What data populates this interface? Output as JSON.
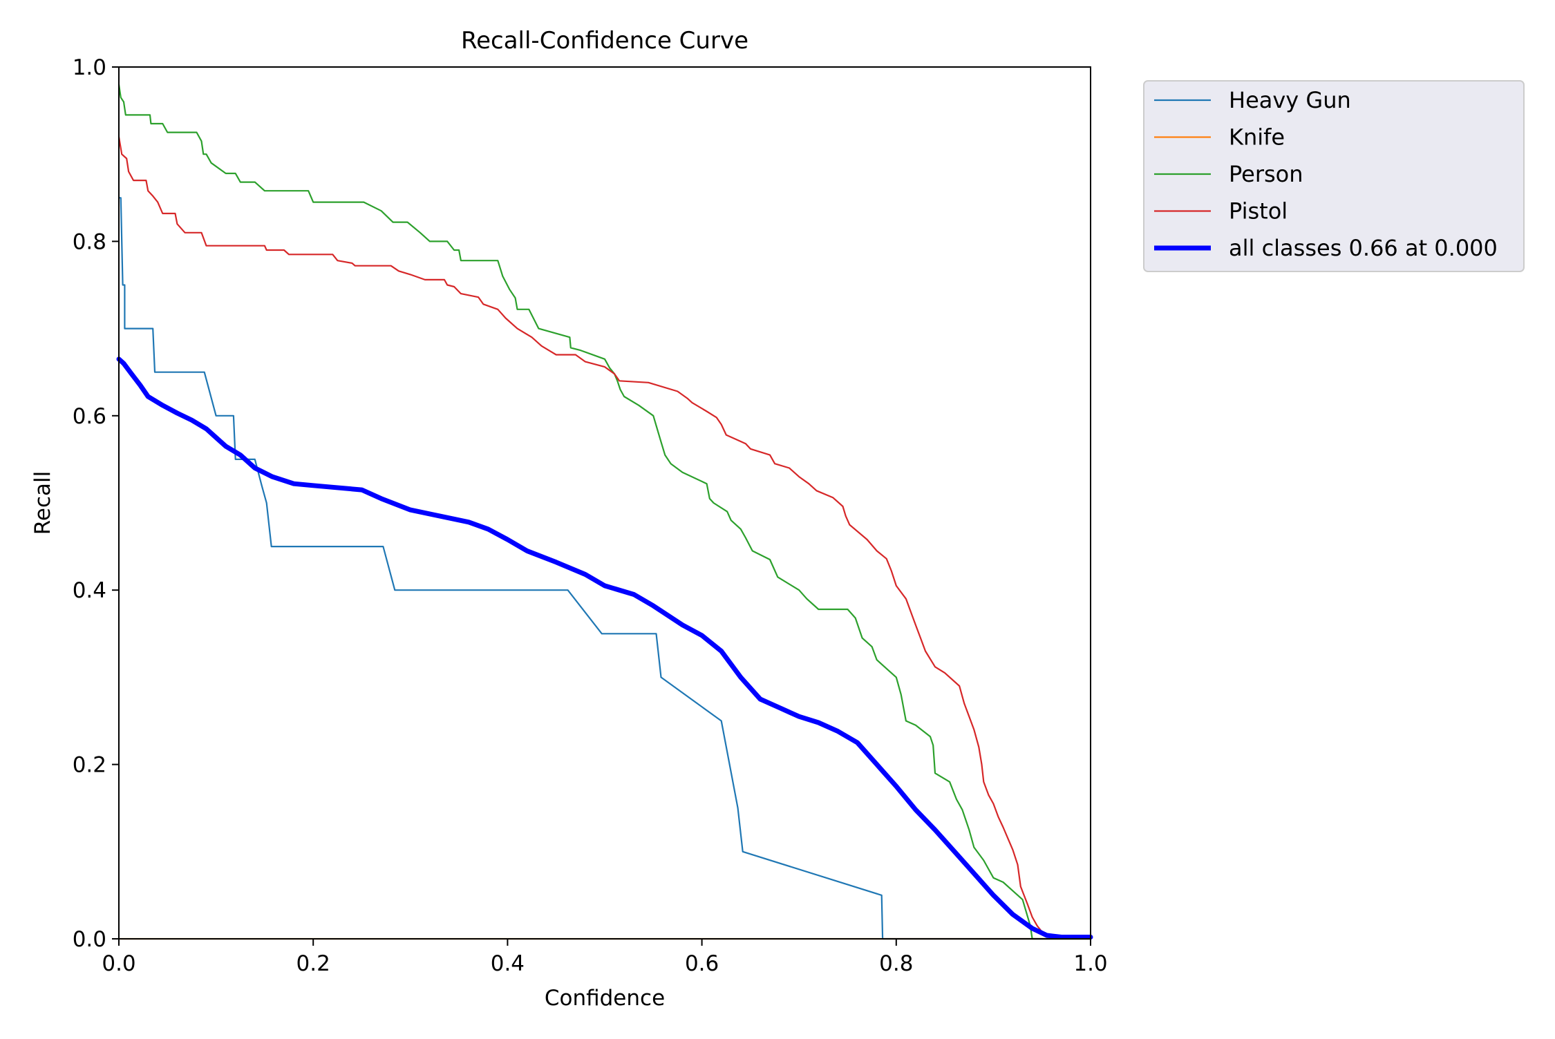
{
  "chart_data": {
    "type": "line",
    "title": "Recall-Confidence Curve",
    "xlabel": "Confidence",
    "ylabel": "Recall",
    "xlim": [
      0.0,
      1.0
    ],
    "ylim": [
      0.0,
      1.0
    ],
    "x_ticks": [
      "0.0",
      "0.2",
      "0.4",
      "0.6",
      "0.8",
      "1.0"
    ],
    "y_ticks": [
      "0.0",
      "0.2",
      "0.4",
      "0.6",
      "0.8",
      "1.0"
    ],
    "grid": false,
    "legend_position": "outside-upper-right",
    "series": [
      {
        "name": "Heavy Gun",
        "color": "#1f77b4",
        "width": "thin",
        "points": [
          [
            0.0,
            0.85
          ],
          [
            0.002,
            0.85
          ],
          [
            0.004,
            0.75
          ],
          [
            0.006,
            0.75
          ],
          [
            0.006,
            0.7
          ],
          [
            0.035,
            0.7
          ],
          [
            0.037,
            0.65
          ],
          [
            0.088,
            0.65
          ],
          [
            0.1,
            0.6
          ],
          [
            0.118,
            0.6
          ],
          [
            0.12,
            0.55
          ],
          [
            0.14,
            0.55
          ],
          [
            0.147,
            0.52
          ],
          [
            0.152,
            0.5
          ],
          [
            0.157,
            0.45
          ],
          [
            0.272,
            0.45
          ],
          [
            0.284,
            0.4
          ],
          [
            0.462,
            0.4
          ],
          [
            0.497,
            0.35
          ],
          [
            0.553,
            0.35
          ],
          [
            0.558,
            0.3
          ],
          [
            0.62,
            0.25
          ],
          [
            0.637,
            0.15
          ],
          [
            0.642,
            0.1
          ],
          [
            0.785,
            0.05
          ],
          [
            0.786,
            0.0
          ],
          [
            1.0,
            0.0
          ]
        ]
      },
      {
        "name": "Knife",
        "color": "#ff7f0e",
        "width": "thin",
        "points": [
          [
            0.0,
            0.0
          ],
          [
            1.0,
            0.0
          ]
        ]
      },
      {
        "name": "Person",
        "color": "#2ca02c",
        "width": "thin",
        "points": [
          [
            0.0,
            0.98
          ],
          [
            0.002,
            0.965
          ],
          [
            0.005,
            0.96
          ],
          [
            0.007,
            0.945
          ],
          [
            0.032,
            0.945
          ],
          [
            0.033,
            0.935
          ],
          [
            0.045,
            0.935
          ],
          [
            0.05,
            0.925
          ],
          [
            0.08,
            0.925
          ],
          [
            0.085,
            0.915
          ],
          [
            0.087,
            0.9
          ],
          [
            0.09,
            0.9
          ],
          [
            0.095,
            0.89
          ],
          [
            0.11,
            0.878
          ],
          [
            0.12,
            0.878
          ],
          [
            0.125,
            0.868
          ],
          [
            0.14,
            0.868
          ],
          [
            0.15,
            0.858
          ],
          [
            0.195,
            0.858
          ],
          [
            0.2,
            0.845
          ],
          [
            0.252,
            0.845
          ],
          [
            0.27,
            0.835
          ],
          [
            0.282,
            0.822
          ],
          [
            0.297,
            0.822
          ],
          [
            0.31,
            0.81
          ],
          [
            0.32,
            0.8
          ],
          [
            0.338,
            0.8
          ],
          [
            0.345,
            0.79
          ],
          [
            0.35,
            0.79
          ],
          [
            0.352,
            0.778
          ],
          [
            0.39,
            0.778
          ],
          [
            0.395,
            0.76
          ],
          [
            0.402,
            0.745
          ],
          [
            0.408,
            0.735
          ],
          [
            0.41,
            0.722
          ],
          [
            0.422,
            0.722
          ],
          [
            0.432,
            0.7
          ],
          [
            0.464,
            0.69
          ],
          [
            0.465,
            0.678
          ],
          [
            0.475,
            0.675
          ],
          [
            0.5,
            0.665
          ],
          [
            0.505,
            0.655
          ],
          [
            0.51,
            0.648
          ],
          [
            0.513,
            0.64
          ],
          [
            0.516,
            0.63
          ],
          [
            0.52,
            0.622
          ],
          [
            0.535,
            0.612
          ],
          [
            0.55,
            0.6
          ],
          [
            0.558,
            0.57
          ],
          [
            0.562,
            0.555
          ],
          [
            0.568,
            0.545
          ],
          [
            0.58,
            0.535
          ],
          [
            0.605,
            0.522
          ],
          [
            0.608,
            0.505
          ],
          [
            0.612,
            0.5
          ],
          [
            0.626,
            0.49
          ],
          [
            0.63,
            0.48
          ],
          [
            0.64,
            0.47
          ],
          [
            0.645,
            0.46
          ],
          [
            0.652,
            0.445
          ],
          [
            0.67,
            0.435
          ],
          [
            0.678,
            0.415
          ],
          [
            0.7,
            0.4
          ],
          [
            0.708,
            0.39
          ],
          [
            0.72,
            0.378
          ],
          [
            0.75,
            0.378
          ],
          [
            0.758,
            0.368
          ],
          [
            0.765,
            0.345
          ],
          [
            0.775,
            0.335
          ],
          [
            0.78,
            0.32
          ],
          [
            0.79,
            0.31
          ],
          [
            0.8,
            0.3
          ],
          [
            0.805,
            0.28
          ],
          [
            0.81,
            0.25
          ],
          [
            0.82,
            0.245
          ],
          [
            0.835,
            0.232
          ],
          [
            0.838,
            0.222
          ],
          [
            0.84,
            0.19
          ],
          [
            0.855,
            0.18
          ],
          [
            0.862,
            0.16
          ],
          [
            0.868,
            0.148
          ],
          [
            0.875,
            0.125
          ],
          [
            0.88,
            0.105
          ],
          [
            0.89,
            0.09
          ],
          [
            0.9,
            0.07
          ],
          [
            0.91,
            0.065
          ],
          [
            0.92,
            0.055
          ],
          [
            0.93,
            0.045
          ],
          [
            0.938,
            0.015
          ],
          [
            0.94,
            0.0
          ],
          [
            1.0,
            0.0
          ]
        ]
      },
      {
        "name": "Pistol",
        "color": "#d62728",
        "width": "thin",
        "points": [
          [
            0.0,
            0.92
          ],
          [
            0.003,
            0.9
          ],
          [
            0.008,
            0.895
          ],
          [
            0.01,
            0.88
          ],
          [
            0.015,
            0.87
          ],
          [
            0.028,
            0.87
          ],
          [
            0.03,
            0.858
          ],
          [
            0.035,
            0.852
          ],
          [
            0.04,
            0.845
          ],
          [
            0.045,
            0.832
          ],
          [
            0.058,
            0.832
          ],
          [
            0.06,
            0.82
          ],
          [
            0.068,
            0.81
          ],
          [
            0.085,
            0.81
          ],
          [
            0.09,
            0.795
          ],
          [
            0.15,
            0.795
          ],
          [
            0.152,
            0.79
          ],
          [
            0.17,
            0.79
          ],
          [
            0.175,
            0.785
          ],
          [
            0.22,
            0.785
          ],
          [
            0.225,
            0.778
          ],
          [
            0.24,
            0.775
          ],
          [
            0.243,
            0.772
          ],
          [
            0.28,
            0.772
          ],
          [
            0.288,
            0.766
          ],
          [
            0.3,
            0.762
          ],
          [
            0.315,
            0.756
          ],
          [
            0.335,
            0.756
          ],
          [
            0.338,
            0.75
          ],
          [
            0.345,
            0.748
          ],
          [
            0.352,
            0.74
          ],
          [
            0.37,
            0.736
          ],
          [
            0.375,
            0.728
          ],
          [
            0.39,
            0.722
          ],
          [
            0.398,
            0.712
          ],
          [
            0.41,
            0.7
          ],
          [
            0.425,
            0.69
          ],
          [
            0.435,
            0.68
          ],
          [
            0.45,
            0.67
          ],
          [
            0.47,
            0.67
          ],
          [
            0.48,
            0.662
          ],
          [
            0.5,
            0.656
          ],
          [
            0.51,
            0.648
          ],
          [
            0.515,
            0.64
          ],
          [
            0.545,
            0.638
          ],
          [
            0.575,
            0.628
          ],
          [
            0.585,
            0.62
          ],
          [
            0.59,
            0.615
          ],
          [
            0.605,
            0.605
          ],
          [
            0.615,
            0.598
          ],
          [
            0.62,
            0.59
          ],
          [
            0.625,
            0.578
          ],
          [
            0.645,
            0.568
          ],
          [
            0.65,
            0.562
          ],
          [
            0.67,
            0.555
          ],
          [
            0.675,
            0.545
          ],
          [
            0.69,
            0.54
          ],
          [
            0.7,
            0.53
          ],
          [
            0.71,
            0.522
          ],
          [
            0.718,
            0.514
          ],
          [
            0.735,
            0.506
          ],
          [
            0.745,
            0.496
          ],
          [
            0.748,
            0.485
          ],
          [
            0.752,
            0.475
          ],
          [
            0.77,
            0.458
          ],
          [
            0.78,
            0.445
          ],
          [
            0.79,
            0.436
          ],
          [
            0.795,
            0.422
          ],
          [
            0.8,
            0.405
          ],
          [
            0.81,
            0.39
          ],
          [
            0.815,
            0.375
          ],
          [
            0.82,
            0.36
          ],
          [
            0.825,
            0.345
          ],
          [
            0.83,
            0.33
          ],
          [
            0.84,
            0.312
          ],
          [
            0.85,
            0.305
          ],
          [
            0.865,
            0.29
          ],
          [
            0.87,
            0.27
          ],
          [
            0.875,
            0.255
          ],
          [
            0.88,
            0.24
          ],
          [
            0.885,
            0.22
          ],
          [
            0.888,
            0.2
          ],
          [
            0.89,
            0.18
          ],
          [
            0.895,
            0.165
          ],
          [
            0.9,
            0.155
          ],
          [
            0.905,
            0.14
          ],
          [
            0.91,
            0.128
          ],
          [
            0.915,
            0.115
          ],
          [
            0.92,
            0.102
          ],
          [
            0.925,
            0.085
          ],
          [
            0.928,
            0.06
          ],
          [
            0.935,
            0.04
          ],
          [
            0.94,
            0.025
          ],
          [
            0.945,
            0.015
          ],
          [
            0.95,
            0.008
          ],
          [
            0.96,
            0.003
          ],
          [
            1.0,
            0.0
          ]
        ]
      },
      {
        "name": "all classes 0.66 at 0.000",
        "color": "#0000ff",
        "width": "thick",
        "points": [
          [
            0.0,
            0.665
          ],
          [
            0.005,
            0.66
          ],
          [
            0.013,
            0.648
          ],
          [
            0.022,
            0.635
          ],
          [
            0.03,
            0.622
          ],
          [
            0.045,
            0.612
          ],
          [
            0.06,
            0.603
          ],
          [
            0.075,
            0.595
          ],
          [
            0.09,
            0.585
          ],
          [
            0.1,
            0.575
          ],
          [
            0.11,
            0.565
          ],
          [
            0.125,
            0.555
          ],
          [
            0.14,
            0.54
          ],
          [
            0.158,
            0.53
          ],
          [
            0.18,
            0.522
          ],
          [
            0.2,
            0.52
          ],
          [
            0.22,
            0.518
          ],
          [
            0.25,
            0.515
          ],
          [
            0.27,
            0.505
          ],
          [
            0.3,
            0.492
          ],
          [
            0.33,
            0.485
          ],
          [
            0.36,
            0.478
          ],
          [
            0.38,
            0.47
          ],
          [
            0.4,
            0.458
          ],
          [
            0.42,
            0.445
          ],
          [
            0.45,
            0.432
          ],
          [
            0.48,
            0.418
          ],
          [
            0.5,
            0.405
          ],
          [
            0.53,
            0.395
          ],
          [
            0.55,
            0.382
          ],
          [
            0.58,
            0.36
          ],
          [
            0.6,
            0.348
          ],
          [
            0.62,
            0.33
          ],
          [
            0.64,
            0.3
          ],
          [
            0.66,
            0.275
          ],
          [
            0.68,
            0.265
          ],
          [
            0.7,
            0.255
          ],
          [
            0.72,
            0.248
          ],
          [
            0.74,
            0.238
          ],
          [
            0.76,
            0.225
          ],
          [
            0.78,
            0.2
          ],
          [
            0.8,
            0.175
          ],
          [
            0.82,
            0.148
          ],
          [
            0.84,
            0.125
          ],
          [
            0.86,
            0.1
          ],
          [
            0.88,
            0.075
          ],
          [
            0.9,
            0.05
          ],
          [
            0.92,
            0.028
          ],
          [
            0.94,
            0.012
          ],
          [
            0.955,
            0.004
          ],
          [
            0.97,
            0.002
          ],
          [
            1.0,
            0.002
          ]
        ]
      }
    ]
  }
}
